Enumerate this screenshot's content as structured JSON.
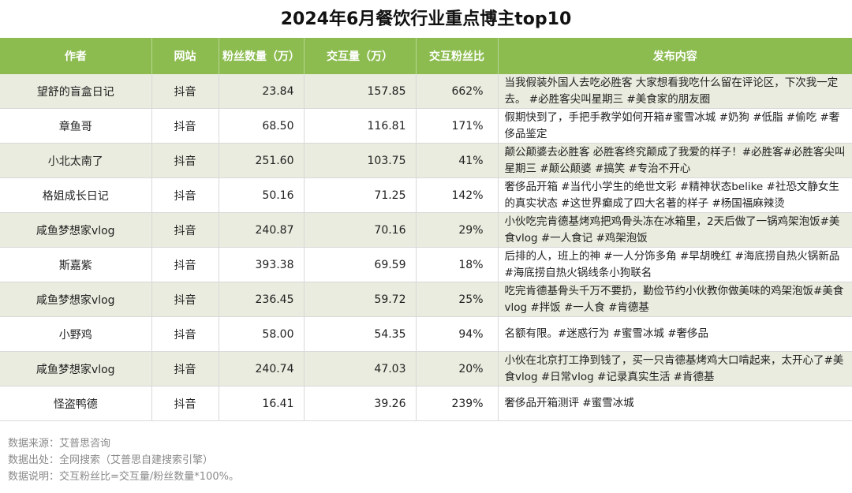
{
  "title": "2024年6月餐饮行业重点博主top10",
  "colors": {
    "header_bg": "#8cbc4f",
    "odd_row_bg": "#e9ecde",
    "even_row_bg": "#ffffff"
  },
  "chart_data": {
    "type": "table",
    "title": "2024年6月餐饮行业重点博主top10",
    "columns": [
      "作者",
      "网站",
      "粉丝数量（万）",
      "交互量（万）",
      "交互粉丝比",
      "发布内容"
    ],
    "rows": [
      [
        "望舒的盲盒日记",
        "抖音",
        "23.84",
        "157.85",
        "662%",
        "当我假装外国人去吃必胜客 大家想看我吃什么留在评论区，下次我一定去。 #必胜客尖叫星期三 #美食家的朋友圈"
      ],
      [
        "章鱼哥",
        "抖音",
        "68.50",
        "116.81",
        "171%",
        "假期快到了，手把手教学如何开箱#蜜雪冰城 #奶狗 #低脂 #偷吃 #奢侈品鉴定"
      ],
      [
        "小北太南了",
        "抖音",
        "251.60",
        "103.75",
        "41%",
        "颠公颠婆去必胜客 必胜客终究颠成了我爱的样子！#必胜客#必胜客尖叫星期三 #颠公颠婆 #搞笑 #专治不开心"
      ],
      [
        "格姐成长日记",
        "抖音",
        "50.16",
        "71.25",
        "142%",
        "奢侈品开箱 #当代小学生的绝世文彩 #精神状态belike #社恐文静女生的真实状态 #这世界癫成了四大名著的样子 #杨国福麻辣烫"
      ],
      [
        "咸鱼梦想家vlog",
        "抖音",
        "240.87",
        "70.16",
        "29%",
        "小伙吃完肯德基烤鸡把鸡骨头冻在冰箱里，2天后做了一锅鸡架泡饭#美食vlog #一人食记 #鸡架泡饭"
      ],
      [
        "斯嘉紫",
        "抖音",
        "393.38",
        "69.59",
        "18%",
        "后排的人，班上的神 #一人分饰多角 #早胡晚红 #海底捞自热火锅新品 #海底捞自热火锅线条小狗联名"
      ],
      [
        "咸鱼梦想家vlog",
        "抖音",
        "236.45",
        "59.72",
        "25%",
        "吃完肯德基骨头千万不要扔，勤俭节约小伙教你做美味的鸡架泡饭#美食vlog #拌饭 #一人食 #肯德基"
      ],
      [
        "小野鸡",
        "抖音",
        "58.00",
        "54.35",
        "94%",
        "名额有限。#迷惑行为 #蜜雪冰城 #奢侈品"
      ],
      [
        "咸鱼梦想家vlog",
        "抖音",
        "240.74",
        "47.03",
        "20%",
        "小伙在北京打工挣到钱了，买一只肯德基烤鸡大口啃起来，太开心了#美食vlog #日常vlog #记录真实生活 #肯德基"
      ],
      [
        "怪盗鸭德",
        "抖音",
        "16.41",
        "39.26",
        "239%",
        "奢侈品开箱测评 #蜜雪冰城"
      ]
    ]
  },
  "footer": {
    "source": "数据来源：艾普思咨询",
    "origin": "数据出处：全网搜索（艾普思自建搜索引擎）",
    "note": "数据说明：交互粉丝比=交互量/粉丝数量*100%。"
  }
}
